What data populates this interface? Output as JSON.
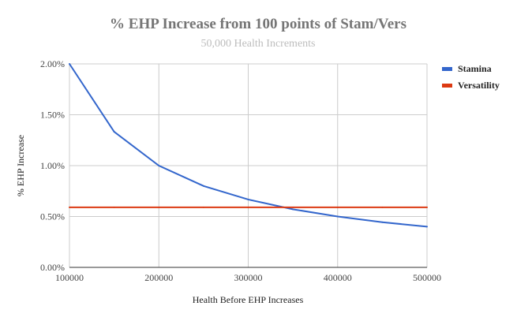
{
  "chart_data": {
    "type": "line",
    "title": "% EHP Increase from 100 points of Stam/Vers",
    "subtitle": "50,000 Health Increments",
    "xlabel": "Health Before EHP Increases",
    "ylabel": "% EHP Increase",
    "x": [
      100000,
      150000,
      200000,
      250000,
      300000,
      350000,
      400000,
      450000,
      500000
    ],
    "xlim": [
      100000,
      500000
    ],
    "ylim": [
      0,
      2.0
    ],
    "x_ticks": [
      100000,
      200000,
      300000,
      400000,
      500000
    ],
    "x_tick_labels": [
      "100000",
      "200000",
      "300000",
      "400000",
      "500000"
    ],
    "y_ticks": [
      0,
      0.5,
      1.0,
      1.5,
      2.0
    ],
    "y_tick_labels": [
      "0.00%",
      "0.50%",
      "1.00%",
      "1.50%",
      "2.00%"
    ],
    "grid": true,
    "legend_position": "right",
    "series": [
      {
        "name": "Stamina",
        "color": "#3366cc",
        "values": [
          2.0,
          1.333,
          1.0,
          0.8,
          0.667,
          0.571,
          0.5,
          0.444,
          0.4
        ]
      },
      {
        "name": "Versatility",
        "color": "#dc3912",
        "values": [
          0.59,
          0.59,
          0.59,
          0.59,
          0.59,
          0.59,
          0.59,
          0.59,
          0.59
        ]
      }
    ]
  }
}
